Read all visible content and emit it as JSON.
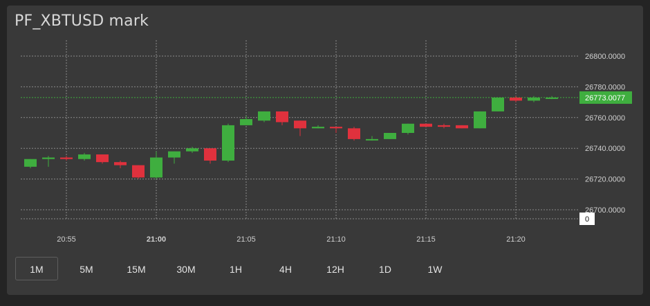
{
  "title": "PF_XBTUSD mark",
  "timeframes": [
    {
      "label": "1M",
      "active": true
    },
    {
      "label": "5M",
      "active": false
    },
    {
      "label": "15M",
      "active": false
    },
    {
      "label": "30M",
      "active": false
    },
    {
      "label": "1H",
      "active": false
    },
    {
      "label": "4H",
      "active": false
    },
    {
      "label": "12H",
      "active": false
    },
    {
      "label": "1D",
      "active": false
    },
    {
      "label": "1W",
      "active": false
    }
  ],
  "colors": {
    "up": "#3fae3f",
    "down": "#e0313d",
    "grid": "#8a8a8a",
    "axis_text": "#d0d0d0"
  },
  "chart_data": {
    "type": "candlestick",
    "title": "PF_XBTUSD mark",
    "y_ticks": [
      "26800.0000",
      "26780.0000",
      "26760.0000",
      "26740.0000",
      "26720.0000",
      "26700.0000"
    ],
    "y_tick_values": [
      26800,
      26780,
      26760,
      26740,
      26720,
      26700
    ],
    "ylim": [
      26693,
      26821
    ],
    "x_ticks": [
      {
        "label": "20:55",
        "minute": 2,
        "bold": false
      },
      {
        "label": "21:00",
        "minute": 7,
        "bold": true
      },
      {
        "label": "21:05",
        "minute": 12,
        "bold": false
      },
      {
        "label": "21:10",
        "minute": 17,
        "bold": false
      },
      {
        "label": "21:15",
        "minute": 22,
        "bold": false
      },
      {
        "label": "21:20",
        "minute": 27,
        "bold": false
      }
    ],
    "last_price_label": "26773.0077",
    "last_price": 26773.0077,
    "volume_label": "0",
    "grid": true,
    "candles": [
      {
        "o": 26728,
        "c": 26733,
        "h": 26733,
        "l": 26727
      },
      {
        "o": 26733,
        "c": 26734,
        "h": 26735,
        "l": 26728
      },
      {
        "o": 26734,
        "c": 26733,
        "h": 26735,
        "l": 26732
      },
      {
        "o": 26733,
        "c": 26736,
        "h": 26737,
        "l": 26732
      },
      {
        "o": 26736,
        "c": 26731,
        "h": 26736,
        "l": 26730
      },
      {
        "o": 26731,
        "c": 26729,
        "h": 26732,
        "l": 26727
      },
      {
        "o": 26729,
        "c": 26721,
        "h": 26729,
        "l": 26720
      },
      {
        "o": 26721,
        "c": 26734,
        "h": 26738,
        "l": 26720
      },
      {
        "o": 26734,
        "c": 26738,
        "h": 26738,
        "l": 26730
      },
      {
        "o": 26738,
        "c": 26740,
        "h": 26741,
        "l": 26737
      },
      {
        "o": 26740,
        "c": 26732,
        "h": 26740,
        "l": 26730
      },
      {
        "o": 26732,
        "c": 26755,
        "h": 26756,
        "l": 26731
      },
      {
        "o": 26755,
        "c": 26759,
        "h": 26761,
        "l": 26755
      },
      {
        "o": 26758,
        "c": 26764,
        "h": 26764,
        "l": 26757
      },
      {
        "o": 26764,
        "c": 26757,
        "h": 26764,
        "l": 26755
      },
      {
        "o": 26758,
        "c": 26753,
        "h": 26758,
        "l": 26748
      },
      {
        "o": 26753,
        "c": 26754,
        "h": 26755,
        "l": 26753
      },
      {
        "o": 26754,
        "c": 26753,
        "h": 26754,
        "l": 26750
      },
      {
        "o": 26753,
        "c": 26746,
        "h": 26754,
        "l": 26745
      },
      {
        "o": 26746,
        "c": 26746,
        "h": 26748,
        "l": 26745
      },
      {
        "o": 26746,
        "c": 26750,
        "h": 26750,
        "l": 26746
      },
      {
        "o": 26750,
        "c": 26756,
        "h": 26756,
        "l": 26749
      },
      {
        "o": 26756,
        "c": 26754,
        "h": 26756,
        "l": 26754
      },
      {
        "o": 26755,
        "c": 26754,
        "h": 26756,
        "l": 26753
      },
      {
        "o": 26755,
        "c": 26753,
        "h": 26755,
        "l": 26753
      },
      {
        "o": 26753,
        "c": 26764,
        "h": 26764,
        "l": 26753
      },
      {
        "o": 26764,
        "c": 26773,
        "h": 26773,
        "l": 26764
      },
      {
        "o": 26773,
        "c": 26771,
        "h": 26774,
        "l": 26770
      },
      {
        "o": 26771,
        "c": 26773,
        "h": 26774,
        "l": 26770
      },
      {
        "o": 26773,
        "c": 26773.0077,
        "h": 26774,
        "l": 26772
      }
    ]
  }
}
